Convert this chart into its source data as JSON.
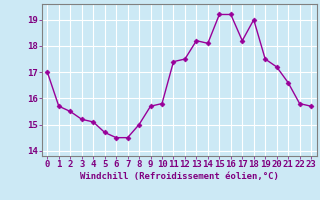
{
  "x": [
    0,
    1,
    2,
    3,
    4,
    5,
    6,
    7,
    8,
    9,
    10,
    11,
    12,
    13,
    14,
    15,
    16,
    17,
    18,
    19,
    20,
    21,
    22,
    23
  ],
  "y": [
    17.0,
    15.7,
    15.5,
    15.2,
    15.1,
    14.7,
    14.5,
    14.5,
    15.0,
    15.7,
    15.8,
    17.4,
    17.5,
    18.2,
    18.1,
    19.2,
    19.2,
    18.2,
    19.0,
    17.5,
    17.2,
    16.6,
    15.8,
    15.7
  ],
  "line_color": "#990099",
  "marker": "D",
  "markersize": 2.5,
  "linewidth": 1.0,
  "bg_color": "#cce9f5",
  "grid_color": "#ffffff",
  "xlabel": "Windchill (Refroidissement éolien,°C)",
  "xlim": [
    -0.5,
    23.5
  ],
  "ylim": [
    13.8,
    19.6
  ],
  "yticks": [
    14,
    15,
    16,
    17,
    18,
    19
  ],
  "xticks": [
    0,
    1,
    2,
    3,
    4,
    5,
    6,
    7,
    8,
    9,
    10,
    11,
    12,
    13,
    14,
    15,
    16,
    17,
    18,
    19,
    20,
    21,
    22,
    23
  ],
  "xlabel_fontsize": 6.5,
  "tick_fontsize": 6.5,
  "tick_color": "#800080",
  "axis_color": "#800080",
  "spine_color": "#808080"
}
